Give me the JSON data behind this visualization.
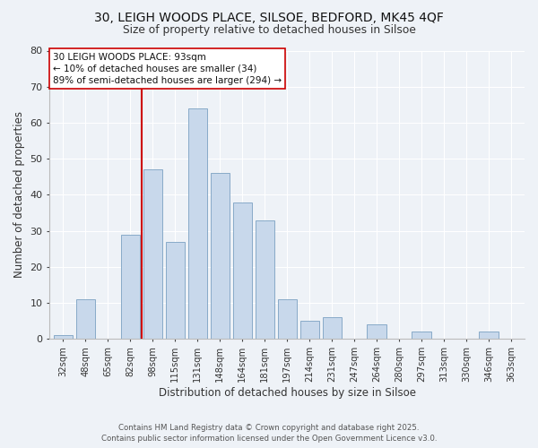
{
  "title": "30, LEIGH WOODS PLACE, SILSOE, BEDFORD, MK45 4QF",
  "subtitle": "Size of property relative to detached houses in Silsoe",
  "xlabel": "Distribution of detached houses by size in Silsoe",
  "ylabel": "Number of detached properties",
  "bar_color": "#c8d8eb",
  "bar_edge_color": "#88aac8",
  "background_color": "#eef2f7",
  "grid_color": "#ffffff",
  "bin_labels": [
    "32sqm",
    "48sqm",
    "65sqm",
    "82sqm",
    "98sqm",
    "115sqm",
    "131sqm",
    "148sqm",
    "164sqm",
    "181sqm",
    "197sqm",
    "214sqm",
    "231sqm",
    "247sqm",
    "264sqm",
    "280sqm",
    "297sqm",
    "313sqm",
    "330sqm",
    "346sqm",
    "363sqm"
  ],
  "counts": [
    1,
    11,
    0,
    29,
    47,
    27,
    64,
    46,
    38,
    33,
    11,
    5,
    6,
    0,
    4,
    0,
    2,
    0,
    0,
    2,
    0
  ],
  "vline_color": "#cc0000",
  "annotation_line1": "30 LEIGH WOODS PLACE: 93sqm",
  "annotation_line2": "← 10% of detached houses are smaller (34)",
  "annotation_line3": "89% of semi-detached houses are larger (294) →",
  "annotation_box_facecolor": "#ffffff",
  "annotation_box_edgecolor": "#cc0000",
  "ylim": [
    0,
    80
  ],
  "yticks": [
    0,
    10,
    20,
    30,
    40,
    50,
    60,
    70,
    80
  ],
  "footer1": "Contains HM Land Registry data © Crown copyright and database right 2025.",
  "footer2": "Contains public sector information licensed under the Open Government Licence v3.0."
}
